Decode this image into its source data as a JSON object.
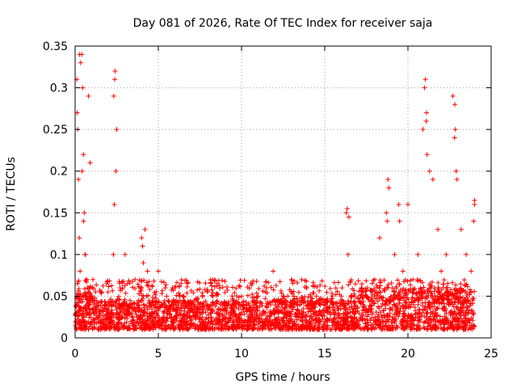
{
  "chart_data": {
    "type": "scatter",
    "title": "Day 081 of 2026, Rate Of TEC Index for receiver saja",
    "xlabel": "GPS time / hours",
    "ylabel": "ROTI / TECUs",
    "xlim": [
      0,
      25
    ],
    "ylim": [
      0,
      0.35
    ],
    "xticks": [
      0,
      5,
      10,
      15,
      20,
      25
    ],
    "xtick_labels": [
      "0",
      "5",
      "10",
      "15",
      "20",
      "25"
    ],
    "yticks": [
      0,
      0.05,
      0.1,
      0.15,
      0.2,
      0.25,
      0.3,
      0.35
    ],
    "ytick_labels": [
      "0",
      "0.05",
      "0.1",
      "0.15",
      "0.2",
      "0.25",
      "0.3",
      "0.35"
    ],
    "grid": true,
    "marker": "plus",
    "color": "#ff0000",
    "series": [
      {
        "name": "ROTI",
        "x": [
          0.05,
          0.1,
          0.15,
          0.2,
          0.25,
          0.3,
          0.35,
          0.4,
          0.45,
          0.5,
          0.55,
          0.6,
          0.7,
          0.8,
          0.9,
          1.0,
          1.2,
          1.5,
          1.8,
          2.0,
          2.2,
          2.3,
          2.35,
          2.4,
          2.5,
          2.7,
          3.0,
          3.3,
          3.6,
          4.0,
          4.1,
          4.3,
          4.6,
          5.0,
          5.2,
          5.5,
          6.0,
          6.5,
          7.0,
          7.5,
          8.0,
          8.5,
          9.0,
          9.5,
          10.0,
          10.5,
          11.0,
          11.5,
          11.9,
          12.0,
          12.5,
          13.0,
          13.5,
          14.0,
          14.5,
          15.0,
          15.5,
          16.0,
          16.3,
          16.4,
          16.8,
          17.2,
          17.5,
          18.0,
          18.3,
          18.7,
          18.8,
          19.2,
          19.5,
          19.7,
          20.0,
          20.3,
          20.6,
          20.9,
          21.0,
          21.1,
          21.3,
          21.5,
          21.8,
          22.0,
          22.3,
          22.7,
          22.8,
          22.9,
          23.2,
          23.5,
          23.8,
          24.0,
          0.02,
          0.12,
          0.27,
          0.33,
          0.42,
          0.51,
          0.62,
          0.75,
          0.88,
          1.1,
          2.32,
          2.38,
          2.45,
          4.05,
          4.2,
          4.35,
          16.35,
          16.45,
          18.75,
          18.85,
          19.45,
          21.05,
          21.12,
          21.15,
          22.82,
          22.85,
          22.95,
          23.95,
          24.0
        ],
        "y": [
          0.02,
          0.31,
          0.25,
          0.19,
          0.12,
          0.08,
          0.05,
          0.34,
          0.3,
          0.22,
          0.15,
          0.1,
          0.07,
          0.29,
          0.21,
          0.05,
          0.03,
          0.02,
          0.025,
          0.03,
          0.04,
          0.1,
          0.16,
          0.32,
          0.25,
          0.06,
          0.1,
          0.04,
          0.07,
          0.12,
          0.09,
          0.05,
          0.03,
          0.08,
          0.04,
          0.05,
          0.06,
          0.05,
          0.04,
          0.03,
          0.035,
          0.03,
          0.025,
          0.04,
          0.05,
          0.035,
          0.05,
          0.06,
          0.08,
          0.045,
          0.05,
          0.055,
          0.045,
          0.04,
          0.05,
          0.045,
          0.04,
          0.05,
          0.15,
          0.1,
          0.05,
          0.06,
          0.05,
          0.07,
          0.12,
          0.15,
          0.19,
          0.1,
          0.14,
          0.08,
          0.16,
          0.07,
          0.1,
          0.25,
          0.3,
          0.26,
          0.2,
          0.19,
          0.13,
          0.08,
          0.1,
          0.29,
          0.24,
          0.2,
          0.13,
          0.1,
          0.08,
          0.16,
          0.015,
          0.27,
          0.34,
          0.33,
          0.2,
          0.14,
          0.1,
          0.06,
          0.04,
          0.03,
          0.29,
          0.31,
          0.2,
          0.11,
          0.13,
          0.08,
          0.155,
          0.145,
          0.14,
          0.18,
          0.16,
          0.31,
          0.27,
          0.22,
          0.28,
          0.25,
          0.19,
          0.14,
          0.165
        ]
      }
    ],
    "band": {
      "description": "dense background scatter",
      "x_range": [
        0,
        24
      ],
      "typical_range": [
        0.01,
        0.045
      ]
    }
  }
}
